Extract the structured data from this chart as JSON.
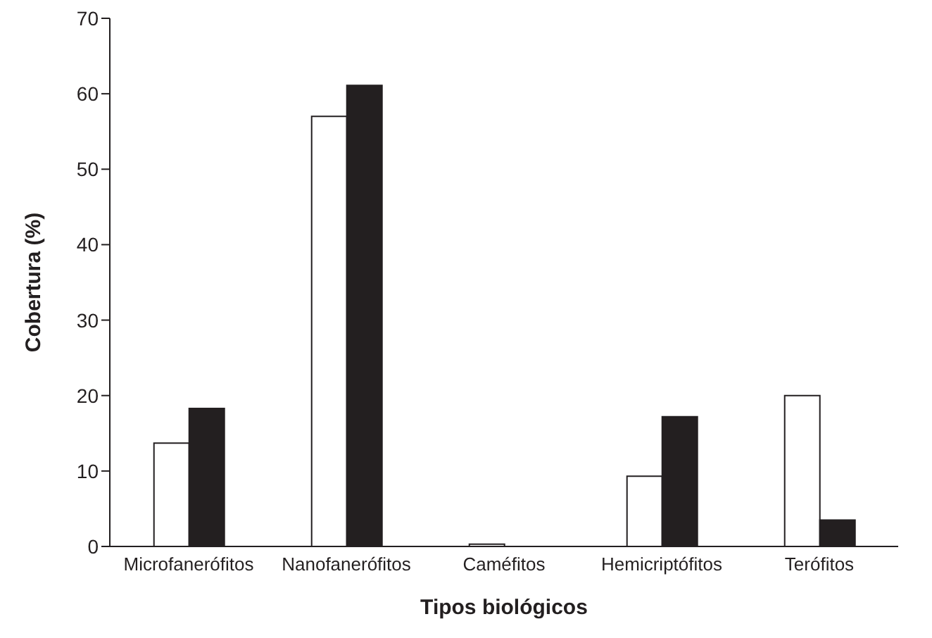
{
  "chart_data": {
    "type": "bar",
    "xlabel": "Tipos biológicos",
    "ylabel": "Cobertura (%)",
    "categories": [
      "Microfanerófitos",
      "Nanofanerófitos",
      "Caméfitos",
      "Hemicriptófitos",
      "Terófitos"
    ],
    "series": [
      {
        "color": "#ffffff",
        "values": [
          13.7,
          57,
          0.3,
          9.3,
          20
        ]
      },
      {
        "color": "#231f20",
        "values": [
          18.3,
          61.1,
          0,
          17.2,
          3.5
        ]
      }
    ],
    "ylim": [
      0,
      70
    ],
    "yticks": [
      0,
      10,
      20,
      30,
      40,
      50,
      60,
      70
    ],
    "grid": false,
    "legend": false
  }
}
